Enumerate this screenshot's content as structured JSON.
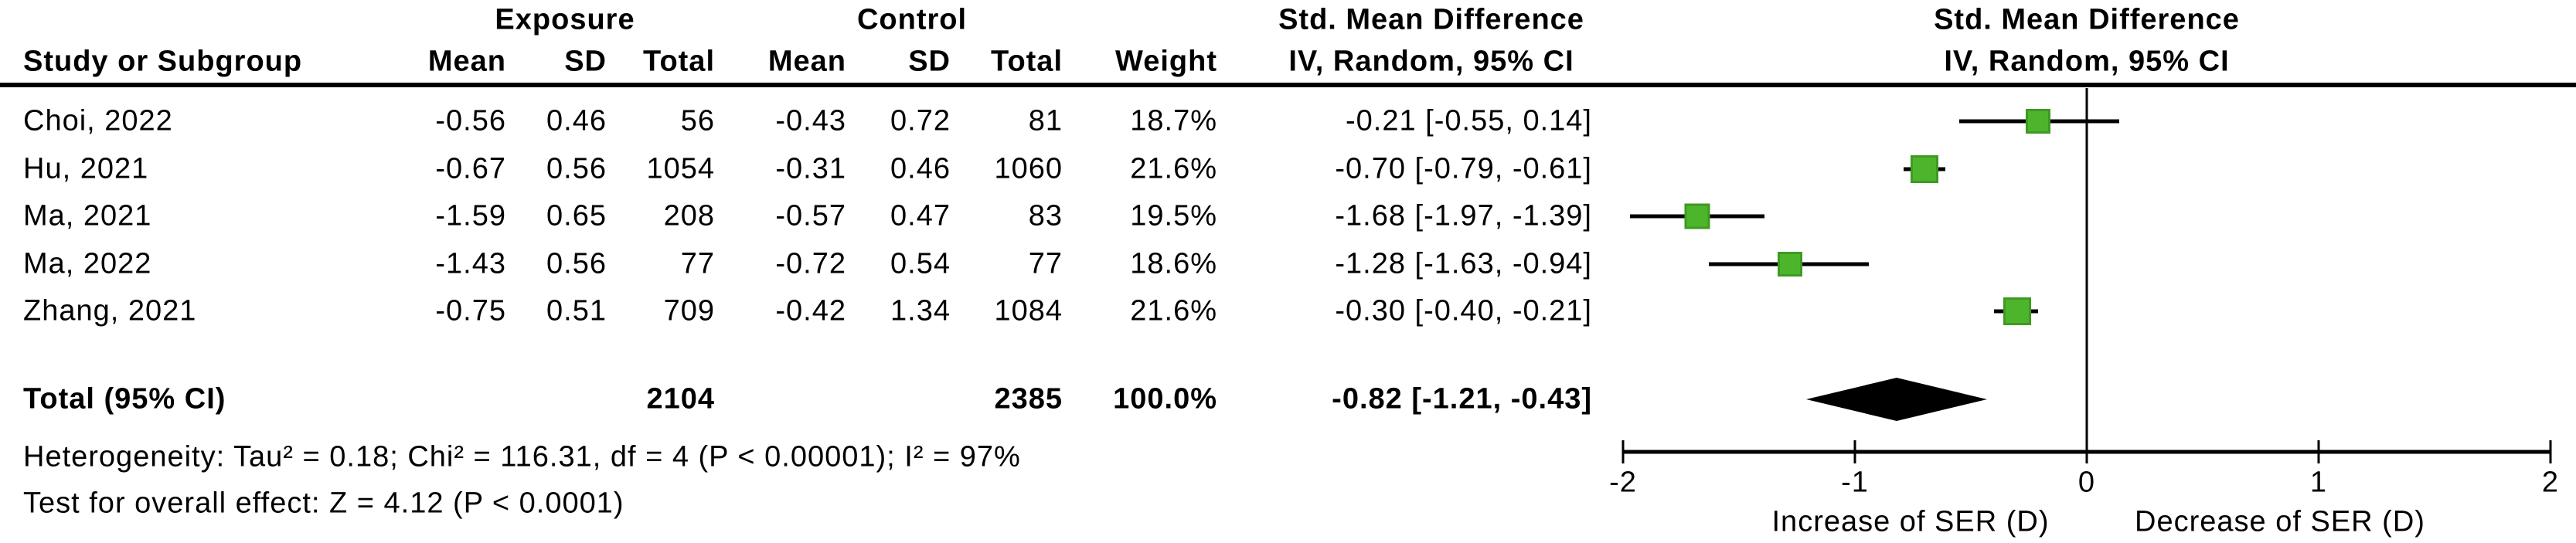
{
  "header": {
    "group_exposure": "Exposure",
    "group_control": "Control",
    "smd_left_line1": "Std. Mean Difference",
    "smd_left_line2": "IV, Random, 95% CI",
    "smd_right_line1": "Std. Mean Difference",
    "smd_right_line2": "IV, Random, 95% CI",
    "study_col": "Study or Subgroup",
    "mean": "Mean",
    "sd": "SD",
    "total": "Total",
    "weight": "Weight"
  },
  "table": {
    "rows": [
      {
        "name": "Choi, 2022",
        "mean_e": "-0.56",
        "sd_e": "0.46",
        "total_e": "56",
        "mean_c": "-0.43",
        "sd_c": "0.72",
        "total_c": "81",
        "weight": "18.7%",
        "ci": "-0.21 [-0.55, 0.14]"
      },
      {
        "name": "Hu, 2021",
        "mean_e": "-0.67",
        "sd_e": "0.56",
        "total_e": "1054",
        "mean_c": "-0.31",
        "sd_c": "0.46",
        "total_c": "1060",
        "weight": "21.6%",
        "ci": "-0.70 [-0.79, -0.61]"
      },
      {
        "name": "Ma, 2021",
        "mean_e": "-1.59",
        "sd_e": "0.65",
        "total_e": "208",
        "mean_c": "-0.57",
        "sd_c": "0.47",
        "total_c": "83",
        "weight": "19.5%",
        "ci": "-1.68 [-1.97, -1.39]"
      },
      {
        "name": "Ma, 2022",
        "mean_e": "-1.43",
        "sd_e": "0.56",
        "total_e": "77",
        "mean_c": "-0.72",
        "sd_c": "0.54",
        "total_c": "77",
        "weight": "18.6%",
        "ci": "-1.28 [-1.63, -0.94]"
      },
      {
        "name": "Zhang, 2021",
        "mean_e": "-0.75",
        "sd_e": "0.51",
        "total_e": "709",
        "mean_c": "-0.42",
        "sd_c": "1.34",
        "total_c": "1084",
        "weight": "21.6%",
        "ci": "-0.30 [-0.40, -0.21]"
      }
    ],
    "total_row": {
      "label": "Total (95% CI)",
      "total_e": "2104",
      "total_c": "2385",
      "weight": "100.0%",
      "ci": "-0.82 [-1.21, -0.43]"
    }
  },
  "footnotes": {
    "heterogeneity": "Heterogeneity: Tau² = 0.18; Chi² = 116.31, df = 4 (P < 0.00001); I² = 97%",
    "overall_effect": "Test for overall effect: Z = 4.12 (P < 0.0001)"
  },
  "axis": {
    "label_left": "Increase of SER (D)",
    "label_right": "Decrease of SER (D)"
  },
  "colors": {
    "marker_fill": "#4DB52C",
    "marker_border": "#3E9A22",
    "line": "#000000"
  },
  "chart_data": {
    "type": "scatter",
    "subtype": "forest_plot",
    "title": "Std. Mean Difference, IV, Random, 95% CI",
    "xlim": [
      -2,
      2
    ],
    "x_ticks": [
      -2,
      -1,
      0,
      1,
      2
    ],
    "direction_label_left": "Increase of SER (D)",
    "direction_label_right": "Decrease of SER (D)",
    "studies": [
      {
        "name": "Choi, 2022",
        "est": -0.21,
        "lo": -0.55,
        "hi": 0.14,
        "weight_pct": 18.7
      },
      {
        "name": "Hu, 2021",
        "est": -0.7,
        "lo": -0.79,
        "hi": -0.61,
        "weight_pct": 21.6
      },
      {
        "name": "Ma, 2021",
        "est": -1.68,
        "lo": -1.97,
        "hi": -1.39,
        "weight_pct": 19.5
      },
      {
        "name": "Ma, 2022",
        "est": -1.28,
        "lo": -1.63,
        "hi": -0.94,
        "weight_pct": 18.6
      },
      {
        "name": "Zhang, 2021",
        "est": -0.3,
        "lo": -0.4,
        "hi": -0.21,
        "weight_pct": 21.6
      }
    ],
    "total": {
      "est": -0.82,
      "lo": -1.21,
      "hi": -0.43,
      "weight_pct": 100.0
    },
    "totals": {
      "exposure_n": 2104,
      "control_n": 2385
    },
    "heterogeneity": {
      "tau2": 0.18,
      "chi2": 116.31,
      "df": 4,
      "p": "< 0.00001",
      "i2_pct": 97
    },
    "overall_effect": {
      "z": 4.12,
      "p": "< 0.0001"
    }
  }
}
